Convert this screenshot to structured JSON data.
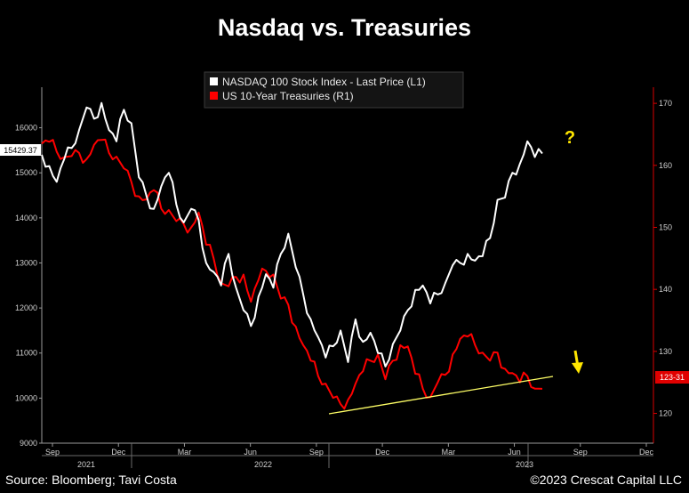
{
  "title": "Nasdaq vs. Treasuries",
  "source": "Source: Bloomberg; Tavi Costa",
  "copyright": "©2023 Crescat Capital LLC",
  "chart_data": {
    "type": "line",
    "x_ticks": [
      "Sep",
      "Dec",
      "Mar",
      "Jun",
      "Sep",
      "Dec",
      "Mar",
      "Jun",
      "Sep",
      "Dec"
    ],
    "year_labels": [
      "2021",
      "2022",
      "2023"
    ],
    "left_axis": {
      "ticks": [
        9000,
        10000,
        11000,
        12000,
        13000,
        14000,
        15000,
        16000
      ],
      "ylim": [
        9000,
        16900
      ]
    },
    "right_axis": {
      "ticks": [
        120,
        130,
        140,
        150,
        160,
        170
      ],
      "ylim": [
        115.2,
        172.6
      ]
    },
    "series": [
      {
        "name": "NASDAQ 100 Stock Index - Last Price (L1)",
        "color": "#ffffff",
        "axis": "left",
        "last_value_label": "15429.37",
        "values": [
          15400,
          15150,
          14800,
          15300,
          15550,
          15950,
          16450,
          16200,
          16550,
          15950,
          15700,
          16400,
          16100,
          14900,
          14500,
          14200,
          14700,
          15000,
          14300,
          13900,
          14200,
          13950,
          13000,
          12800,
          12500,
          13200,
          12450,
          11950,
          11600,
          12250,
          12750,
          12450,
          13200,
          13650,
          12900,
          12300,
          11750,
          11350,
          10900,
          11150,
          11500,
          10800,
          11750,
          11250,
          11450,
          11000,
          10700,
          11200,
          11500,
          11950,
          12400,
          12500,
          12100,
          12300,
          12550,
          12950,
          13000,
          13200,
          13050,
          13150,
          13550,
          14400,
          14450,
          15000,
          15200,
          15700,
          15350,
          15429
        ]
      },
      {
        "name": "US 10-Year Treasuries (R1)",
        "color": "#ff0000",
        "axis": "right",
        "last_value_label": "123-31",
        "values": [
          163.5,
          163.8,
          162.2,
          161.3,
          161.5,
          162,
          161,
          163.3,
          164.1,
          162,
          161.4,
          159.5,
          157.3,
          155,
          154.5,
          156,
          153,
          152.8,
          151,
          150.5,
          150,
          152.4,
          147.2,
          145,
          141,
          140.5,
          142,
          142.4,
          138,
          141.5,
          143,
          142.4,
          138.5,
          137.5,
          134,
          131,
          128.5,
          126,
          124.8,
          122.5,
          121.5,
          122.2,
          124.8,
          126.8,
          128.5,
          129.5,
          125.5,
          128.5,
          131,
          130.8,
          126.4,
          124,
          122.6,
          125,
          126.2,
          129.5,
          132,
          132.4,
          131,
          129.8,
          128.5,
          129.8,
          127.2,
          126.5,
          125,
          126,
          124,
          123.97
        ]
      }
    ],
    "trendline_color": "#ffff66",
    "annotations": {
      "question": "?",
      "arrow": "↓"
    }
  }
}
